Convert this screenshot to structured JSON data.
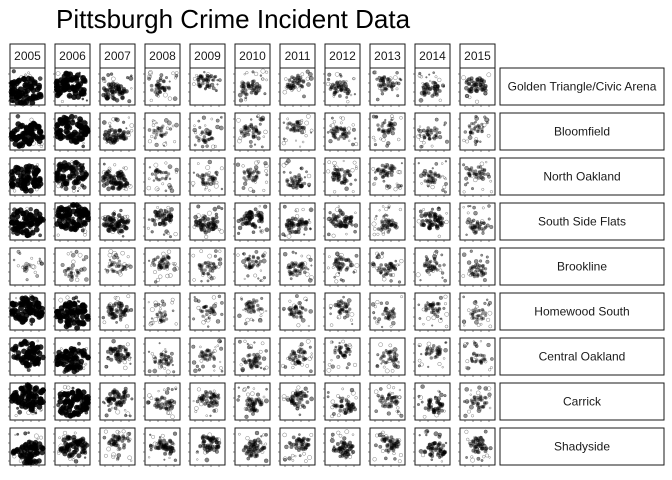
{
  "chart_data": {
    "type": "scatter",
    "title": "Pittsburgh Crime Incident Data",
    "layout": "facet-grid",
    "columns": [
      "2005",
      "2006",
      "2007",
      "2008",
      "2009",
      "2010",
      "2011",
      "2012",
      "2013",
      "2014",
      "2015"
    ],
    "rows": [
      "Golden Triangle/Civic Arena",
      "Bloomfield",
      "North Oakland",
      "South Side Flats",
      "Brookline",
      "Homewood South",
      "Central Oakland",
      "Carrick",
      "Shadyside"
    ],
    "density": [
      [
        0.95,
        0.95,
        0.55,
        0.35,
        0.35,
        0.4,
        0.35,
        0.4,
        0.35,
        0.4,
        0.45
      ],
      [
        0.95,
        0.95,
        0.5,
        0.2,
        0.3,
        0.35,
        0.3,
        0.35,
        0.3,
        0.3,
        0.25
      ],
      [
        0.95,
        0.85,
        0.6,
        0.25,
        0.3,
        0.3,
        0.35,
        0.4,
        0.35,
        0.3,
        0.3
      ],
      [
        0.95,
        0.95,
        0.6,
        0.45,
        0.5,
        0.5,
        0.45,
        0.45,
        0.35,
        0.5,
        0.3
      ],
      [
        0.05,
        0.2,
        0.25,
        0.35,
        0.3,
        0.3,
        0.35,
        0.35,
        0.35,
        0.3,
        0.3
      ],
      [
        0.95,
        0.95,
        0.45,
        0.2,
        0.25,
        0.3,
        0.3,
        0.3,
        0.25,
        0.3,
        0.25
      ],
      [
        0.9,
        0.9,
        0.45,
        0.3,
        0.3,
        0.35,
        0.35,
        0.3,
        0.3,
        0.3,
        0.25
      ],
      [
        0.95,
        0.95,
        0.5,
        0.35,
        0.4,
        0.4,
        0.4,
        0.4,
        0.35,
        0.4,
        0.3
      ],
      [
        0.85,
        0.7,
        0.4,
        0.45,
        0.45,
        0.45,
        0.4,
        0.45,
        0.4,
        0.45,
        0.4
      ]
    ],
    "point_color": "#000000",
    "panel_border_color": "#1a1a1a",
    "strip_fill": "#ffffff",
    "grid": false,
    "legend": "none"
  }
}
